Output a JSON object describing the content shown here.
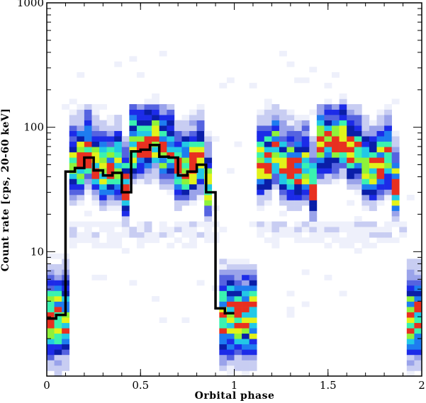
{
  "chart_data": {
    "type": "heatmap",
    "title": "",
    "xlabel": "Orbital phase",
    "ylabel": "Count rate [cps, 20-60 keV]",
    "xlim": [
      0,
      2
    ],
    "ylim": [
      1.0,
      1000
    ],
    "yscale": "log",
    "grid": false,
    "x_ticks": [
      {
        "value": 0,
        "label": "0"
      },
      {
        "value": 0.5,
        "label": "0.5"
      },
      {
        "value": 1,
        "label": "1"
      },
      {
        "value": 1.5,
        "label": "1.5"
      },
      {
        "value": 2,
        "label": "2"
      }
    ],
    "y_ticks": [
      {
        "value": 10,
        "label": "10"
      },
      {
        "value": 100,
        "label": "100"
      },
      {
        "value": 1000,
        "label": "1000"
      }
    ],
    "heatmap": {
      "phase_bin_width": 0.04,
      "colormap": [
        "#eef0fb",
        "#c8cdf2",
        "#9aa3ea",
        "#5563e0",
        "#1c2be8",
        "#0a1ea8",
        "#1e7cf0",
        "#22c8e6",
        "#3af2b0",
        "#8ef23a",
        "#e2f21a",
        "#e83020"
      ],
      "summary": "Two-dimensional histogram of count rate versus orbital phase, repeated over two orbital cycles; low state (~2-5 cps) near phase 0 and 1 (eclipse), high state (~30-100 cps) between phases 0.1-0.9 and 1.1-1.9."
    },
    "series": [
      {
        "type": "step",
        "color": "#000000",
        "x": [
          0.0,
          0.05,
          0.1,
          0.15,
          0.2,
          0.25,
          0.3,
          0.35,
          0.4,
          0.45,
          0.5,
          0.55,
          0.6,
          0.65,
          0.7,
          0.75,
          0.8,
          0.85,
          0.9,
          0.95,
          1.0
        ],
        "values": [
          2.9,
          3.1,
          44,
          47,
          57,
          45,
          41,
          43,
          30,
          64,
          66,
          72,
          58,
          57,
          41,
          44,
          50,
          30,
          3.5,
          3.2,
          3.2
        ]
      }
    ]
  }
}
